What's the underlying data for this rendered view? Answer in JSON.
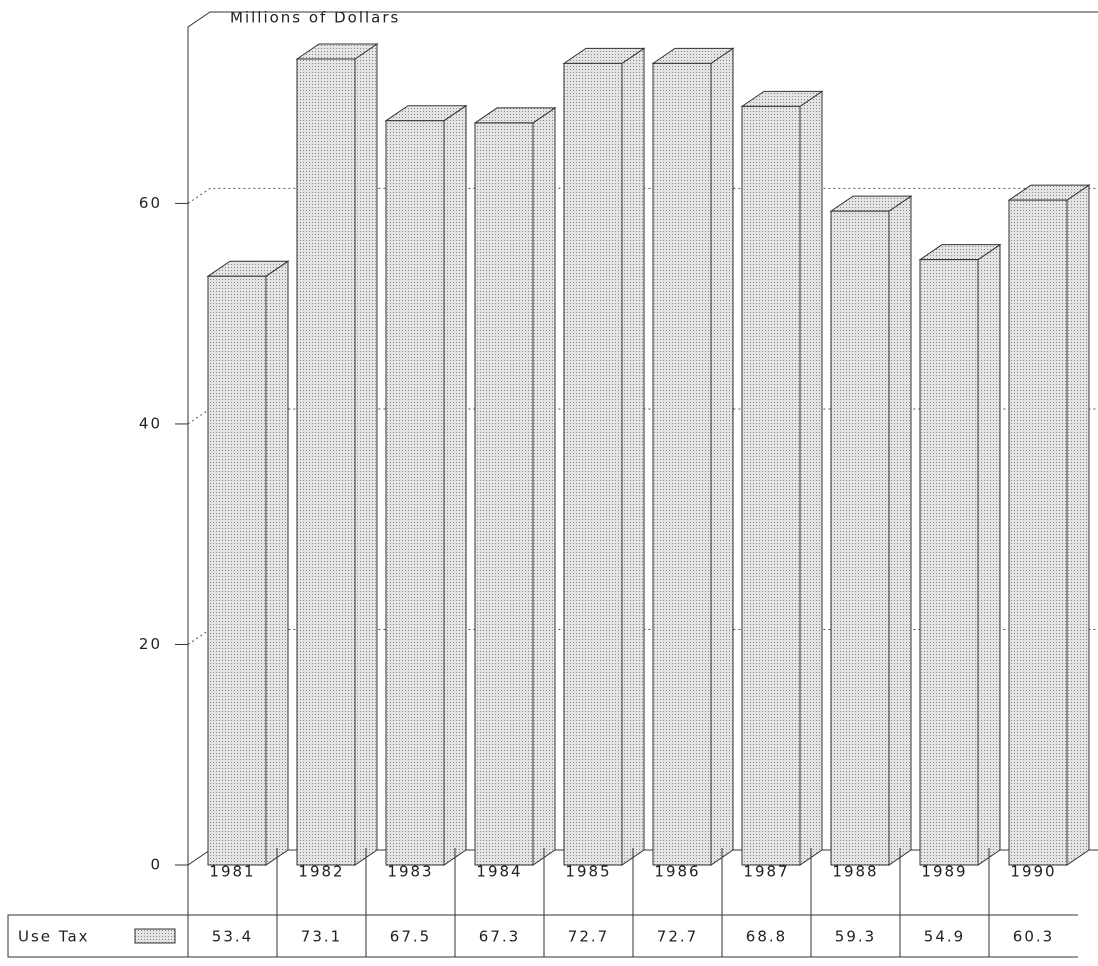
{
  "chart_data": {
    "type": "bar",
    "y_label": "Millions of Dollars",
    "categories": [
      "1981",
      "1982",
      "1983",
      "1984",
      "1985",
      "1986",
      "1987",
      "1988",
      "1989",
      "1990"
    ],
    "series": [
      {
        "name": "Use Tax",
        "color": "#d4d4d4",
        "values": [
          53.4,
          73.1,
          67.5,
          67.3,
          72.7,
          72.7,
          68.8,
          59.3,
          54.9,
          60.3
        ]
      }
    ],
    "ylim": [
      0,
      76
    ],
    "yticks": [
      0,
      20,
      40,
      60
    ],
    "grid": true
  }
}
